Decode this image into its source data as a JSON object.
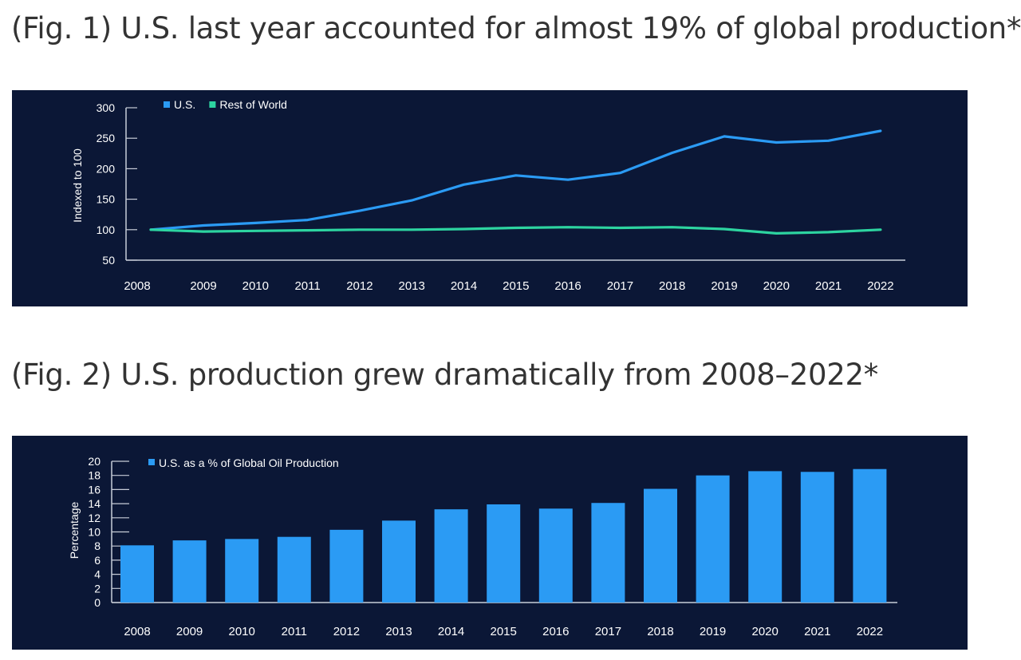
{
  "titles": {
    "fig1": "(Fig. 1) U.S. last year accounted for almost 19% of global production*",
    "fig2": "(Fig. 2) U.S. production grew dramatically from 2008–2022*"
  },
  "colors": {
    "background": "#0b1736",
    "us": "#2b9bf4",
    "rest_of_world": "#2dd4a0",
    "text": "#ffffff"
  },
  "chart_data": [
    {
      "type": "line",
      "title": "",
      "xlabel": "",
      "ylabel": "Indexed to 100",
      "categories": [
        "2008",
        "2009",
        "2010",
        "2011",
        "2012",
        "2013",
        "2014",
        "2015",
        "2016",
        "2017",
        "2018",
        "2019",
        "2020",
        "2021",
        "2022"
      ],
      "series": [
        {
          "name": "U.S.",
          "color": "#2b9bf4",
          "values": [
            100,
            107,
            111,
            116,
            131,
            148,
            174,
            189,
            182,
            193,
            226,
            253,
            243,
            246,
            262
          ]
        },
        {
          "name": "Rest of World",
          "color": "#2dd4a0",
          "values": [
            100,
            97,
            98,
            99,
            100,
            100,
            101,
            103,
            104,
            103,
            104,
            101,
            94,
            96,
            100
          ]
        }
      ],
      "ylim": [
        50,
        300
      ],
      "yticks": [
        50,
        100,
        150,
        200,
        250,
        300
      ],
      "legend_position": "top-left",
      "grid": false
    },
    {
      "type": "bar",
      "title": "",
      "xlabel": "",
      "ylabel": "Percentage",
      "categories": [
        "2008",
        "2009",
        "2010",
        "2011",
        "2012",
        "2013",
        "2014",
        "2015",
        "2016",
        "2017",
        "2018",
        "2019",
        "2020",
        "2021",
        "2022"
      ],
      "series": [
        {
          "name": "U.S. as a % of Global Oil Production",
          "color": "#2b9bf4",
          "values": [
            8.1,
            8.8,
            9.0,
            9.3,
            10.3,
            11.6,
            13.2,
            13.9,
            13.3,
            14.1,
            16.1,
            18.0,
            18.6,
            18.5,
            18.9
          ]
        }
      ],
      "ylim": [
        0,
        20
      ],
      "yticks": [
        0,
        2,
        4,
        6,
        8,
        10,
        12,
        14,
        16,
        18,
        20
      ],
      "legend_position": "top-left",
      "grid": false
    }
  ]
}
